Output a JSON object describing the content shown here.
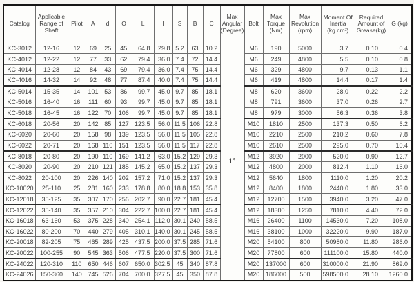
{
  "table": {
    "headers": {
      "catalog": "Catalog",
      "range": "Applicable Range of Shaft",
      "pilot": "Pilot",
      "a": "A",
      "d": "d",
      "o": "O",
      "l": "L",
      "i": "I",
      "s": "S",
      "b": "B",
      "c": "C",
      "angular": "Max Angular (Degree)",
      "bolt": "Bolt",
      "torque": "Max Torque (Nm)",
      "revolution": "Max Revolution (rpm)",
      "inertia": "Moment Of Inertia (kg.cm²)",
      "grease": "Required Amount of Grease(kg)",
      "g": "G (kg)"
    },
    "angular_value": "1°",
    "group_breaks": [
      3,
      6,
      9,
      14,
      19
    ],
    "rows": [
      [
        "KC-3012",
        "12-16",
        "12",
        "69",
        "25",
        "45",
        "64.8",
        "29.8",
        "5.2",
        "63",
        "10.2",
        "M6",
        "190",
        "5000",
        "3.7",
        "0.10",
        "0.4"
      ],
      [
        "KC-4012",
        "12-22",
        "12",
        "77",
        "33",
        "62",
        "79.4",
        "36.0",
        "7.4",
        "72",
        "14.4",
        "M6",
        "249",
        "4800",
        "5.5",
        "0.10",
        "0.8"
      ],
      [
        "KC-4014",
        "12-28",
        "12",
        "84",
        "43",
        "69",
        "79.4",
        "36.0",
        "7.4",
        "75",
        "14.4",
        "M6",
        "329",
        "4800",
        "9.7",
        "0.13",
        "1.1"
      ],
      [
        "KC-4016",
        "14-32",
        "14",
        "92",
        "48",
        "77",
        "87.4",
        "40.0",
        "7.4",
        "75",
        "14.4",
        "M6",
        "419",
        "4800",
        "14.4",
        "0.17",
        "1.4"
      ],
      [
        "KC-5014",
        "15-35",
        "14",
        "101",
        "53",
        "86",
        "99.7",
        "45.0",
        "9.7",
        "85",
        "18.1",
        "M8",
        "620",
        "3600",
        "28.0",
        "0.22",
        "2.2"
      ],
      [
        "KC-5016",
        "16-40",
        "16",
        "111",
        "60",
        "93",
        "99.7",
        "45.0",
        "9.7",
        "85",
        "18.1",
        "M8",
        "791",
        "3600",
        "37.0",
        "0.26",
        "2.7"
      ],
      [
        "KC-5018",
        "16-45",
        "16",
        "122",
        "70",
        "106",
        "99.7",
        "45.0",
        "9.7",
        "85",
        "18.1",
        "M8",
        "979",
        "3000",
        "56.3",
        "0.36",
        "3.8"
      ],
      [
        "KC-6018",
        "20-56",
        "20",
        "142",
        "85",
        "127",
        "123.5",
        "56.0",
        "11.5",
        "106",
        "22.8",
        "M10",
        "1810",
        "2500",
        "137.3",
        "0.50",
        "6.2"
      ],
      [
        "KC-6020",
        "20-60",
        "20",
        "158",
        "98",
        "139",
        "123.5",
        "56.0",
        "11.5",
        "105",
        "22.8",
        "M10",
        "2210",
        "2500",
        "210.2",
        "0.60",
        "7.8"
      ],
      [
        "KC-6022",
        "20-71",
        "20",
        "168",
        "110",
        "151",
        "123.5",
        "56.0",
        "11.5",
        "117",
        "22.8",
        "M10",
        "2610",
        "2500",
        "295.0",
        "0.70",
        "10.4"
      ],
      [
        "KC-8018",
        "20-80",
        "20",
        "190",
        "110",
        "169",
        "141.2",
        "63.0",
        "15.2",
        "129",
        "29.3",
        "M12",
        "3920",
        "2000",
        "520.0",
        "0.90",
        "12.7"
      ],
      [
        "KC-8020",
        "20-90",
        "20",
        "210",
        "121",
        "185",
        "145.2",
        "65.0",
        "15.2",
        "137",
        "29.3",
        "M12",
        "4800",
        "2000",
        "812.4",
        "1.10",
        "16.0"
      ],
      [
        "KC-8022",
        "20-100",
        "20",
        "226",
        "140",
        "202",
        "157.2",
        "71.0",
        "15.2",
        "137",
        "29.3",
        "M12",
        "5640",
        "1800",
        "1110.0",
        "1.20",
        "20.2"
      ],
      [
        "KC-10020",
        "25-110",
        "25",
        "281",
        "160",
        "233",
        "178.8",
        "80.0",
        "18.8",
        "153",
        "35.8",
        "M12",
        "8400",
        "1800",
        "2440.0",
        "1.80",
        "33.0"
      ],
      [
        "KC-12018",
        "35-125",
        "35",
        "307",
        "170",
        "256",
        "202.7",
        "90.0",
        "22.7",
        "181",
        "45.4",
        "M12",
        "12700",
        "1500",
        "3940.0",
        "3.20",
        "47.0"
      ],
      [
        "KC-12022",
        "35-140",
        "35",
        "357",
        "210",
        "304",
        "222.7",
        "100.0",
        "22.7",
        "181",
        "45.4",
        "M12",
        "18300",
        "1250",
        "7810.0",
        "4.40",
        "72.0"
      ],
      [
        "KC-16018",
        "63-160",
        "53",
        "375",
        "228",
        "340",
        "254.1",
        "112.0",
        "30.1",
        "240",
        "58.5",
        "M16",
        "26400",
        "1100",
        "14530.0",
        "7.20",
        "108.0"
      ],
      [
        "KC-16022",
        "80-200",
        "70",
        "440",
        "279",
        "405",
        "310.1",
        "140.0",
        "30.1",
        "245",
        "58.5",
        "M16",
        "38100",
        "1000",
        "32220.0",
        "9.90",
        "187.0"
      ],
      [
        "KC-20018",
        "82-205",
        "75",
        "465",
        "289",
        "425",
        "437.5",
        "200.0",
        "37.5",
        "285",
        "71.6",
        "M20",
        "54100",
        "800",
        "50980.0",
        "11.80",
        "286.0"
      ],
      [
        "KC-20022",
        "100-255",
        "90",
        "545",
        "363",
        "506",
        "477.5",
        "220.0",
        "37.5",
        "300",
        "71.6",
        "M20",
        "77800",
        "600",
        "111100.0",
        "15.80",
        "440.0"
      ],
      [
        "KC-24022",
        "120-310",
        "110",
        "650",
        "446",
        "607",
        "650.0",
        "302.5",
        "45",
        "340",
        "87.8",
        "M20",
        "137000",
        "600",
        "310000.0",
        "21.90",
        "869.0"
      ],
      [
        "KC-24026",
        "150-360",
        "140",
        "745",
        "526",
        "704",
        "700.0",
        "327.5",
        "45",
        "350",
        "87.8",
        "M20",
        "186000",
        "500",
        "598500.0",
        "28.10",
        "1260.0"
      ]
    ]
  }
}
